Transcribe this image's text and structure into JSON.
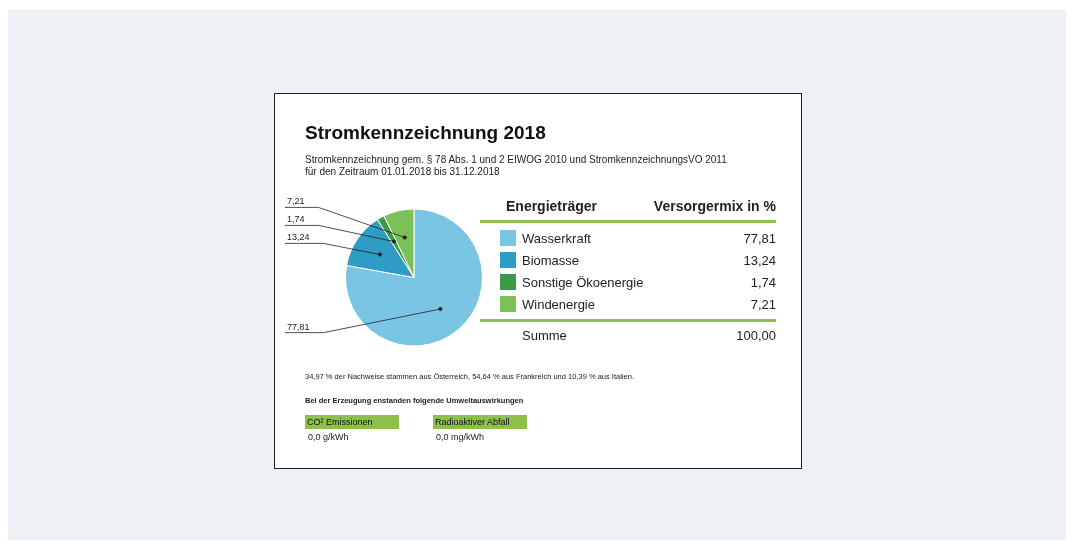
{
  "chart_data": {
    "type": "pie",
    "title": "Stromkennzeichnung 2018",
    "subtitle": "Stromkennzeichnung gem. § 78 Abs. 1 und 2 EIWOG 2010 und StromkennzeichnungsVO 2011\nfür den Zeitraum 01.01.2018 bis 31.12.2018",
    "categories": [
      "Wasserkraft",
      "Biomasse",
      "Sonstige Ökoenergie",
      "Windenergie"
    ],
    "values": [
      77.81,
      13.24,
      1.74,
      7.21
    ],
    "value_labels": [
      "77,81",
      "13,24",
      "1,74",
      "7,21"
    ],
    "colors": [
      "#7ac4e4",
      "#2e9cc4",
      "#3a9a45",
      "#7cc158"
    ],
    "legend": "right",
    "legend_title": "Energieträger",
    "annotations": [
      "Versorgermix in %",
      "Summe",
      "100,00",
      "34,97 % der Nachweise stammen aus Österreich, 54,64 % aus Frankreich und 10,39 % aus Italien.",
      "Bei der Erzeugung enstanden folgende Umweltauswirkungen",
      "CO² Emissionen",
      "0,0 g/kWh",
      "Radioaktiver Abfall",
      "0,0 mg/kWh"
    ]
  }
}
